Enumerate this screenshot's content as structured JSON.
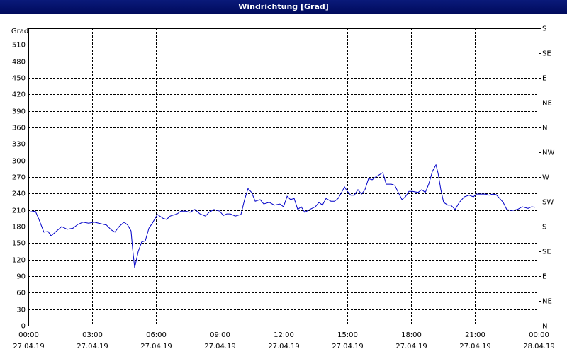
{
  "chart_data": {
    "type": "line",
    "title": "Windrichtung [Grad]",
    "y_label": "Grad",
    "color": "#0000c8",
    "grid": true,
    "xlim": [
      0,
      24
    ],
    "xticks": [
      {
        "value": 0,
        "label": "00:00"
      },
      {
        "value": 3,
        "label": "03:00"
      },
      {
        "value": 6,
        "label": "06:00"
      },
      {
        "value": 9,
        "label": "09:00"
      },
      {
        "value": 12,
        "label": "12:00"
      },
      {
        "value": 15,
        "label": "15:00"
      },
      {
        "value": 18,
        "label": "18:00"
      },
      {
        "value": 21,
        "label": "21:00"
      },
      {
        "value": 24,
        "label": "00:00"
      }
    ],
    "xtick_dates": [
      "27.04.19",
      "27.04.19",
      "27.04.19",
      "27.04.19",
      "27.04.19",
      "27.04.19",
      "27.04.19",
      "27.04.19",
      "28.04.19"
    ],
    "ylim": [
      0,
      540
    ],
    "yticks": [
      0,
      30,
      60,
      90,
      120,
      150,
      180,
      210,
      240,
      270,
      300,
      330,
      360,
      390,
      420,
      450,
      480,
      510
    ],
    "y2lim": [
      0,
      540
    ],
    "y2ticks": [
      {
        "value": 0,
        "label": "N"
      },
      {
        "value": 45,
        "label": "NE"
      },
      {
        "value": 90,
        "label": "E"
      },
      {
        "value": 135,
        "label": "SE"
      },
      {
        "value": 180,
        "label": "S"
      },
      {
        "value": 225,
        "label": "SW"
      },
      {
        "value": 270,
        "label": "W"
      },
      {
        "value": 315,
        "label": "NW"
      },
      {
        "value": 360,
        "label": "N"
      },
      {
        "value": 405,
        "label": "NE"
      },
      {
        "value": 450,
        "label": "E"
      },
      {
        "value": 495,
        "label": "SE"
      },
      {
        "value": 540,
        "label": "S"
      }
    ],
    "x": [
      0,
      0.33,
      0.5,
      0.73,
      0.93,
      1.07,
      1.33,
      1.57,
      1.83,
      2.1,
      2.33,
      2.57,
      2.83,
      3.1,
      3.43,
      3.67,
      3.9,
      4.07,
      4.27,
      4.5,
      4.67,
      4.83,
      4.9,
      5,
      5.17,
      5.33,
      5.5,
      5.67,
      5.83,
      6.07,
      6.33,
      6.5,
      6.67,
      7,
      7.17,
      7.4,
      7.6,
      7.83,
      8.07,
      8.33,
      8.5,
      8.73,
      9,
      9.17,
      9.33,
      9.5,
      9.73,
      10,
      10.17,
      10.33,
      10.5,
      10.67,
      10.9,
      11.07,
      11.33,
      11.57,
      11.83,
      12,
      12.17,
      12.33,
      12.5,
      12.67,
      12.83,
      13,
      13.23,
      13.5,
      13.67,
      13.83,
      14,
      14.23,
      14.4,
      14.57,
      14.73,
      14.87,
      15,
      15.17,
      15.33,
      15.5,
      15.67,
      15.83,
      16,
      16.17,
      16.33,
      16.5,
      16.67,
      16.83,
      17.07,
      17.23,
      17.4,
      17.57,
      17.73,
      17.9,
      18.07,
      18.33,
      18.5,
      18.67,
      18.83,
      19,
      19.17,
      19.27,
      19.4,
      19.53,
      19.73,
      19.87,
      20.07,
      20.27,
      20.5,
      20.73,
      20.93,
      21.07,
      21.33,
      21.5,
      21.67,
      21.83,
      22,
      22.17,
      22.33,
      22.5,
      22.73,
      23,
      23.23,
      23.5,
      23.67,
      23.83
    ],
    "values": [
      206,
      208,
      193,
      170,
      171,
      163,
      172,
      180,
      175,
      177,
      184,
      188,
      186,
      188,
      185,
      183,
      174,
      170,
      180,
      188,
      183,
      172,
      141,
      105,
      135,
      152,
      154,
      177,
      186,
      202,
      195,
      193,
      199,
      203,
      208,
      208,
      206,
      211,
      203,
      199,
      206,
      211,
      208,
      200,
      203,
      203,
      199,
      202,
      229,
      249,
      242,
      226,
      229,
      221,
      224,
      219,
      221,
      216,
      235,
      229,
      231,
      211,
      216,
      206,
      211,
      216,
      224,
      219,
      231,
      226,
      226,
      231,
      242,
      252,
      244,
      237,
      237,
      247,
      239,
      247,
      267,
      265,
      270,
      274,
      278,
      257,
      257,
      255,
      242,
      229,
      234,
      244,
      244,
      242,
      247,
      242,
      257,
      280,
      292,
      277,
      247,
      224,
      219,
      219,
      211,
      224,
      234,
      237,
      234,
      239,
      239,
      239,
      237,
      239,
      238,
      231,
      224,
      211,
      209,
      211,
      216,
      213,
      216,
      215
    ]
  }
}
